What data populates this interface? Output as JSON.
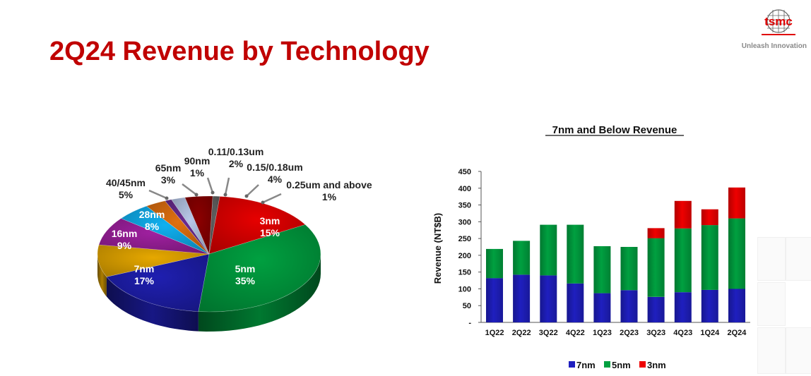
{
  "slide": {
    "title": "2Q24 Revenue by Technology",
    "brand": {
      "logo_text": "tsmc",
      "tagline": "Unleash Innovation"
    }
  },
  "colors": {
    "title": "#c00000",
    "7nm": "#1f1fbf",
    "5nm": "#00a040",
    "3nm": "#ee0000"
  },
  "chart_data": [
    {
      "type": "pie",
      "slices": [
        {
          "name": "3nm",
          "value": 15,
          "label": "15%",
          "color": "#e60000"
        },
        {
          "name": "5nm",
          "value": 35,
          "label": "35%",
          "color": "#00a040"
        },
        {
          "name": "7nm",
          "value": 17,
          "label": "17%",
          "color": "#1f1fb0"
        },
        {
          "name": "16nm",
          "value": 9,
          "label": "9%",
          "color": "#e6a800"
        },
        {
          "name": "28nm",
          "value": 8,
          "label": "8%",
          "color": "#a020a0"
        },
        {
          "name": "40/45nm",
          "value": 5,
          "label": "5%",
          "color": "#10b0f0"
        },
        {
          "name": "65nm",
          "value": 3,
          "label": "3%",
          "color": "#e07010"
        },
        {
          "name": "90nm",
          "value": 1,
          "label": "1%",
          "color": "#6a2a90"
        },
        {
          "name": "0.11/0.13um",
          "value": 2,
          "label": "2%",
          "color": "#b8c8e8"
        },
        {
          "name": "0.15/0.18um",
          "value": 4,
          "label": "4%",
          "color": "#8b0000"
        },
        {
          "name": "0.25um and above",
          "value": 1,
          "label": "1%",
          "color": "#606060"
        }
      ]
    },
    {
      "type": "bar",
      "stacked": true,
      "title": "7nm and Below Revenue",
      "ylabel": "Revenue (NT$B)",
      "ylim": [
        0,
        450
      ],
      "yticks": [
        "-",
        "50",
        "100",
        "150",
        "200",
        "250",
        "300",
        "350",
        "400",
        "450"
      ],
      "categories": [
        "1Q22",
        "2Q22",
        "3Q22",
        "4Q22",
        "1Q23",
        "2Q23",
        "3Q23",
        "4Q23",
        "1Q24",
        "2Q24"
      ],
      "series": [
        {
          "name": "7nm",
          "color": "#1f1fbf",
          "values": [
            132,
            142,
            140,
            116,
            87,
            96,
            76,
            90,
            97,
            100
          ]
        },
        {
          "name": "5nm",
          "color": "#00a040",
          "values": [
            87,
            101,
            151,
            175,
            140,
            129,
            175,
            190,
            193,
            210
          ]
        },
        {
          "name": "3nm",
          "color": "#ee0000",
          "values": [
            0,
            0,
            0,
            0,
            0,
            0,
            30,
            82,
            47,
            92
          ]
        }
      ],
      "legend": "bottom"
    }
  ]
}
